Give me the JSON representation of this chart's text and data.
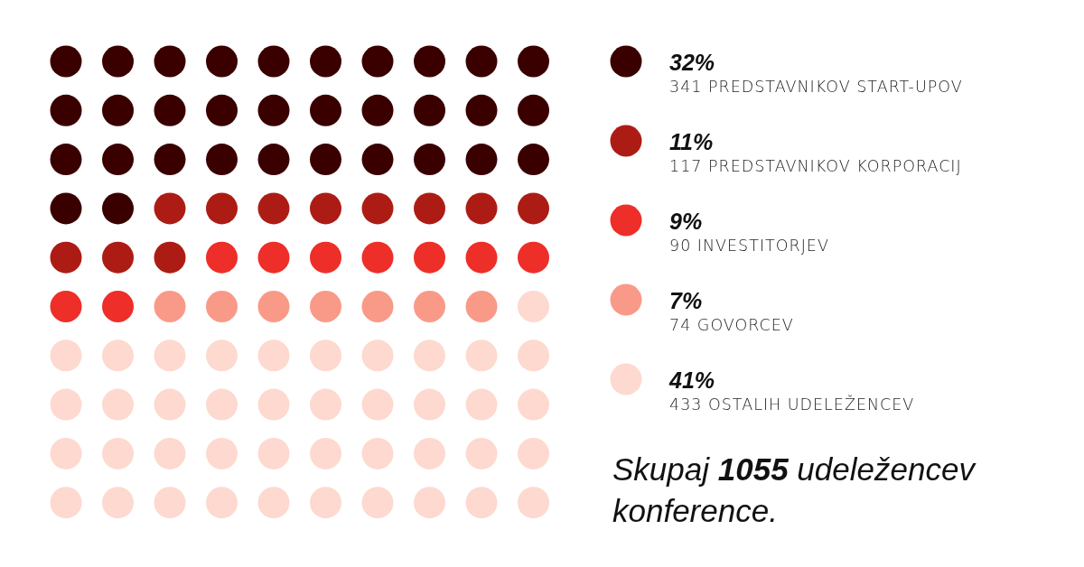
{
  "chart_data": {
    "type": "other",
    "categories": [
      "341 PREDSTAVNIKOV START-UPOV",
      "117 PREDSTAVNIKOV KORPORACIJ",
      "90 INVESTITORJEV",
      "74 GOVORCEV",
      "433 OSTALIH UDELEŽENCEV"
    ],
    "values": [
      32,
      11,
      9,
      7,
      41
    ],
    "value_labels": [
      "32%",
      "11%",
      "9%",
      "7%",
      "41%"
    ],
    "colors": [
      "#3a0000",
      "#ad1c14",
      "#ee2e29",
      "#f99a88",
      "#fdd9d0"
    ],
    "annotations": [
      "Skupaj 1055 udeležencev konference."
    ]
  }
}
